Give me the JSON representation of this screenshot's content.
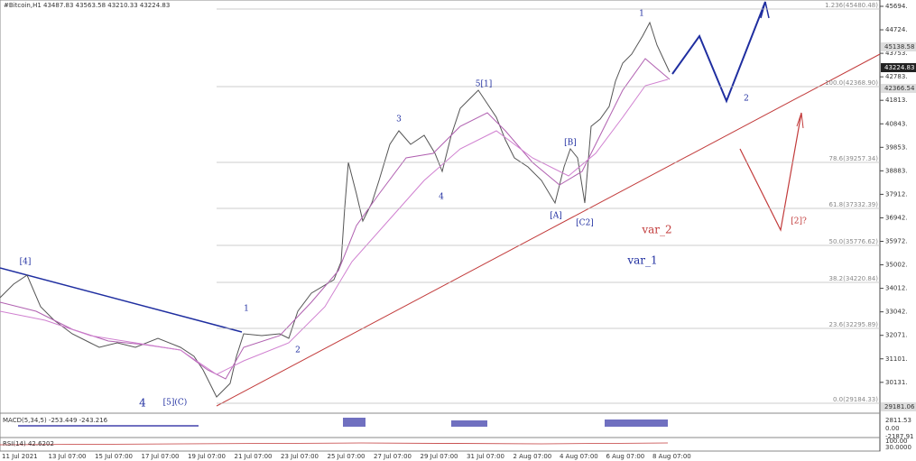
{
  "header": {
    "symbol": "#Bitcoin,H1",
    "quote": "43487.83 43563.58 43210.33 43224.83"
  },
  "y_axis": [
    "45694.",
    "44724.",
    "43753.",
    "42783.",
    "41813.",
    "40843.",
    "39853.",
    "38883.",
    "37912.",
    "36942.",
    "35972.",
    "35002.",
    "34012.",
    "33042.",
    "32071.",
    "31101.",
    "30131."
  ],
  "price_tags": [
    "45138.58",
    "43224.83",
    "42366.54",
    "29181.06"
  ],
  "fib_levels": [
    "1.236(45480.48)",
    "100.0(42368.90)",
    "78.6(39257.34)",
    "61.8(37332.39)",
    "50.0(35776.62)",
    "38.2(34220.84)",
    "23.6(32295.89)",
    "0.0(29184.33)"
  ],
  "waves": [
    "[4]",
    "4",
    "[5](C)",
    "1",
    "2",
    "3",
    "4",
    "5[1]",
    "[A]",
    "[B]",
    "[C2]",
    "1",
    "2",
    "var_2",
    "var_1",
    "[2]?"
  ],
  "x_axis": [
    "11 Jul 2021",
    "13 Jul 07:00",
    "15 Jul 07:00",
    "17 Jul 07:00",
    "19 Jul 07:00",
    "21 Jul 07:00",
    "23 Jul 07:00",
    "25 Jul 07:00",
    "27 Jul 07:00",
    "29 Jul 07:00",
    "31 Jul 07:00",
    "2 Aug 07:00",
    "4 Aug 07:00",
    "6 Aug 07:00",
    "8 Aug 07:00"
  ],
  "macd": {
    "label": "MACD(5,34,5) -253.449 -243.216",
    "axis": [
      "2811.53",
      "0.00",
      "-2187.91"
    ]
  },
  "rsi": {
    "label": "RSI(14) 42.6202",
    "axis": [
      "100.00",
      "30.0000"
    ]
  }
}
